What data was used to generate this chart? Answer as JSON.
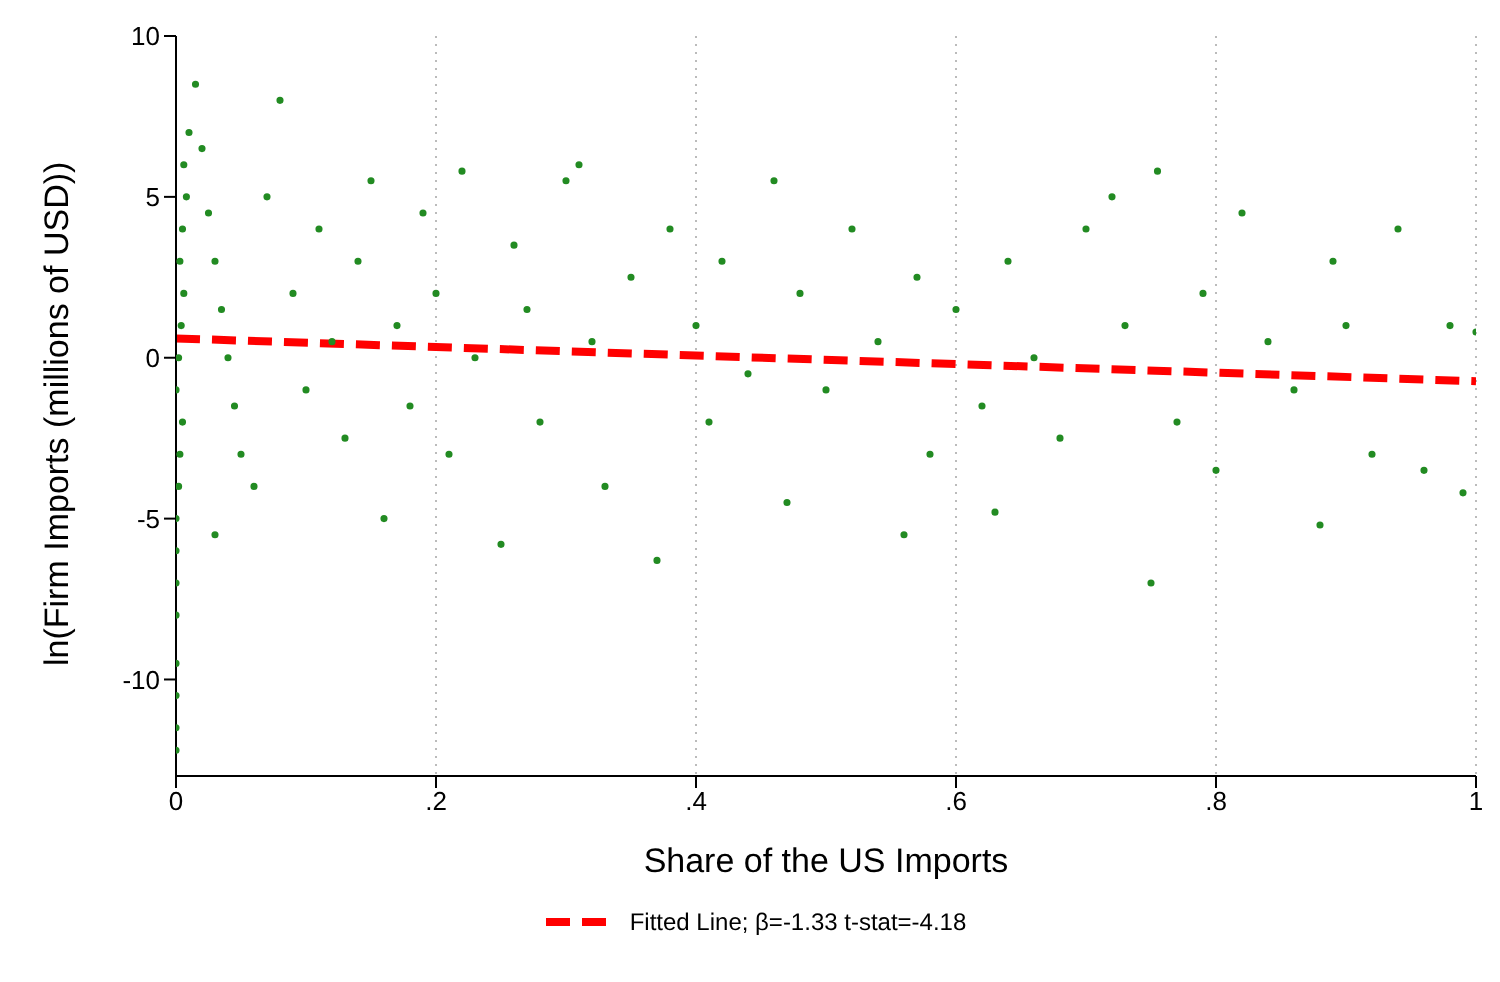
{
  "chart_data": {
    "type": "scatter",
    "xlabel": "Share of the US Imports",
    "ylabel": "ln(Firm Imports (millions of USD))",
    "xlim": [
      0,
      1
    ],
    "xticks": [
      0,
      {
        "value": 0.2,
        "label": ".2"
      },
      {
        "value": 0.4,
        "label": ".4"
      },
      {
        "value": 0.6,
        "label": ".6"
      },
      {
        "value": 0.8,
        "label": ".8"
      },
      1
    ],
    "ylim": [
      -13,
      10
    ],
    "yticks": [
      -10,
      -5,
      0,
      5,
      10
    ],
    "grid": "x",
    "legend": "bottom",
    "series": [
      {
        "color": "#228b22",
        "marker": "circle",
        "x": [
          0,
          0,
          0,
          0,
          0,
          0,
          0,
          0,
          0.002,
          0.003,
          0.005,
          0,
          0.002,
          0.004,
          0.006,
          0.003,
          0.005,
          0.008,
          0.006,
          0.01,
          0.015,
          0.02,
          0.025,
          0.03,
          0.035,
          0.04,
          0.045,
          0.05,
          0.06,
          0.03,
          0.07,
          0.08,
          0.09,
          0.1,
          0.11,
          0.12,
          0.13,
          0.14,
          0.15,
          0.16,
          0.17,
          0.18,
          0.19,
          0.2,
          0.21,
          0.22,
          0.23,
          0.25,
          0.26,
          0.27,
          0.28,
          0.3,
          0.31,
          0.32,
          0.33,
          0.35,
          0.37,
          0.38,
          0.4,
          0.41,
          0.42,
          0.44,
          0.46,
          0.47,
          0.48,
          0.5,
          0.52,
          0.54,
          0.56,
          0.57,
          0.58,
          0.6,
          0.62,
          0.63,
          0.64,
          0.66,
          0.68,
          0.7,
          0.72,
          0.73,
          0.75,
          0.755,
          0.77,
          0.79,
          0.8,
          0.82,
          0.84,
          0.86,
          0.88,
          0.89,
          0.9,
          0.92,
          0.94,
          0.96,
          0.98,
          0.99,
          1
        ],
        "values": [
          -12.2,
          -11.5,
          -10.5,
          -9.5,
          -8,
          -7,
          -6,
          -5,
          -4,
          -3,
          -2,
          -1,
          0,
          1,
          2,
          3,
          4,
          5,
          6,
          7,
          8.5,
          6.5,
          4.5,
          3,
          1.5,
          0,
          -1.5,
          -3,
          -4,
          -5.5,
          5,
          8,
          2,
          -1,
          4,
          0.5,
          -2.5,
          3,
          5.5,
          -5,
          1,
          -1.5,
          4.5,
          2,
          -3,
          5.8,
          0,
          -5.8,
          3.5,
          1.5,
          -2,
          5.5,
          6,
          0.5,
          -4,
          2.5,
          -6.3,
          4,
          1,
          -2,
          3,
          -0.5,
          5.5,
          -4.5,
          2,
          -1,
          4,
          0.5,
          -5.5,
          2.5,
          -3,
          1.5,
          -1.5,
          -4.8,
          3,
          0,
          -2.5,
          4,
          5,
          1,
          -7,
          5.8,
          -2,
          2,
          -3.5,
          4.5,
          0.5,
          -1,
          -5.2,
          3,
          1,
          -3,
          4,
          -3.5,
          1,
          -4.2,
          0.8
        ]
      },
      {
        "type": "line",
        "name": "Fitted Line; β=-1.33  t-stat=-4.18",
        "color": "#ff0000",
        "line_style": "dashed",
        "x": [
          0,
          1
        ],
        "values": [
          0.6,
          -0.73
        ]
      }
    ]
  }
}
